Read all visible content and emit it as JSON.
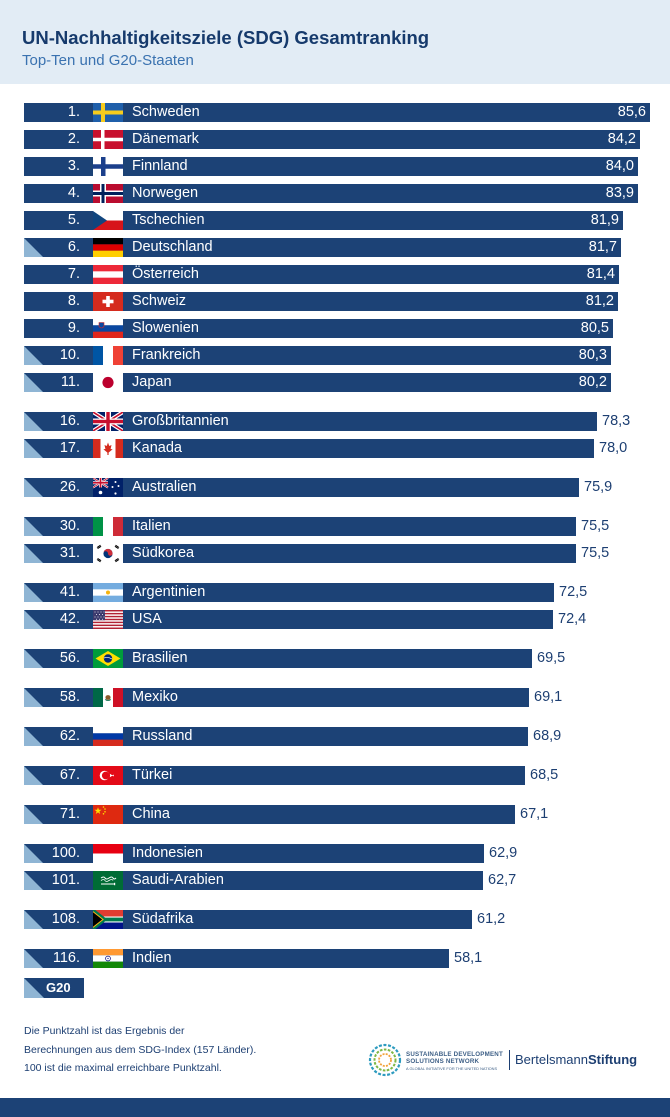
{
  "title": "UN-Nachhaltigkeitsziele (SDG) Gesamtranking",
  "subtitle": "Top-Ten und G20-Staaten",
  "chart_data": {
    "type": "bar",
    "orientation": "horizontal",
    "title": "UN-Nachhaltigkeitsziele (SDG) Gesamtranking",
    "subtitle": "Top-Ten und G20-Staaten",
    "xlabel": "",
    "ylabel": "",
    "xlim": [
      0,
      85.6
    ],
    "grid": false,
    "legend": "bottom-left",
    "rows": [
      {
        "rank": "1.",
        "country": "Schweden",
        "score": 85.6,
        "score_label": "85,6",
        "g20": false,
        "flag": "flag-sweden"
      },
      {
        "rank": "2.",
        "country": "Dänemark",
        "score": 84.2,
        "score_label": "84,2",
        "g20": false,
        "flag": "flag-denmark"
      },
      {
        "rank": "3.",
        "country": "Finnland",
        "score": 84.0,
        "score_label": "84,0",
        "g20": false,
        "flag": "flag-finland"
      },
      {
        "rank": "4.",
        "country": "Norwegen",
        "score": 83.9,
        "score_label": "83,9",
        "g20": false,
        "flag": "flag-norway"
      },
      {
        "rank": "5.",
        "country": "Tschechien",
        "score": 81.9,
        "score_label": "81,9",
        "g20": false,
        "flag": "flag-czechia"
      },
      {
        "rank": "6.",
        "country": "Deutschland",
        "score": 81.7,
        "score_label": "81,7",
        "g20": true,
        "flag": "flag-germany"
      },
      {
        "rank": "7.",
        "country": "Österreich",
        "score": 81.4,
        "score_label": "81,4",
        "g20": false,
        "flag": "flag-austria"
      },
      {
        "rank": "8.",
        "country": "Schweiz",
        "score": 81.2,
        "score_label": "81,2",
        "g20": false,
        "flag": "flag-switzerland"
      },
      {
        "rank": "9.",
        "country": "Slowenien",
        "score": 80.5,
        "score_label": "80,5",
        "g20": false,
        "flag": "flag-slovenia"
      },
      {
        "rank": "10.",
        "country": "Frankreich",
        "score": 80.3,
        "score_label": "80,3",
        "g20": true,
        "flag": "flag-france"
      },
      {
        "rank": "11.",
        "country": "Japan",
        "score": 80.2,
        "score_label": "80,2",
        "g20": true,
        "flag": "flag-japan"
      },
      {
        "rank": "16.",
        "country": "Großbritannien",
        "score": 78.3,
        "score_label": "78,3",
        "g20": true,
        "flag": "flag-uk"
      },
      {
        "rank": "17.",
        "country": "Kanada",
        "score": 78.0,
        "score_label": "78,0",
        "g20": true,
        "flag": "flag-canada"
      },
      {
        "rank": "26.",
        "country": "Australien",
        "score": 75.9,
        "score_label": "75,9",
        "g20": true,
        "flag": "flag-australia"
      },
      {
        "rank": "30.",
        "country": "Italien",
        "score": 75.5,
        "score_label": "75,5",
        "g20": true,
        "flag": "flag-italy"
      },
      {
        "rank": "31.",
        "country": "Südkorea",
        "score": 75.5,
        "score_label": "75,5",
        "g20": true,
        "flag": "flag-south-korea"
      },
      {
        "rank": "41.",
        "country": "Argentinien",
        "score": 72.5,
        "score_label": "72,5",
        "g20": true,
        "flag": "flag-argentina"
      },
      {
        "rank": "42.",
        "country": "USA",
        "score": 72.4,
        "score_label": "72,4",
        "g20": true,
        "flag": "flag-usa"
      },
      {
        "rank": "56.",
        "country": "Brasilien",
        "score": 69.5,
        "score_label": "69,5",
        "g20": true,
        "flag": "flag-brazil"
      },
      {
        "rank": "58.",
        "country": "Mexiko",
        "score": 69.1,
        "score_label": "69,1",
        "g20": true,
        "flag": "flag-mexico"
      },
      {
        "rank": "62.",
        "country": "Russland",
        "score": 68.9,
        "score_label": "68,9",
        "g20": true,
        "flag": "flag-russia"
      },
      {
        "rank": "67.",
        "country": "Türkei",
        "score": 68.5,
        "score_label": "68,5",
        "g20": true,
        "flag": "flag-turkey"
      },
      {
        "rank": "71.",
        "country": "China",
        "score": 67.1,
        "score_label": "67,1",
        "g20": true,
        "flag": "flag-china"
      },
      {
        "rank": "100.",
        "country": "Indonesien",
        "score": 62.9,
        "score_label": "62,9",
        "g20": true,
        "flag": "flag-indonesia"
      },
      {
        "rank": "101.",
        "country": "Saudi-Arabien",
        "score": 62.7,
        "score_label": "62,7",
        "g20": true,
        "flag": "flag-saudi-arabia"
      },
      {
        "rank": "108.",
        "country": "Südafrika",
        "score": 61.2,
        "score_label": "61,2",
        "g20": true,
        "flag": "flag-south-africa"
      },
      {
        "rank": "116.",
        "country": "Indien",
        "score": 58.1,
        "score_label": "58,1",
        "g20": true,
        "flag": "flag-india"
      }
    ],
    "legend_label": "G20"
  },
  "footnote": {
    "line1": "Die Punktzahl ist das Ergebnis der",
    "line2": "Berechnungen aus dem SDG-Index (157 Länder).",
    "line3": "100 ist die maximal erreichbare Punktzahl."
  },
  "sdsn": {
    "line1": "SUSTAINABLE DEVELOPMENT",
    "line2": "SOLUTIONS NETWORK",
    "line3": "A GLOBAL INITIATIVE FOR THE UNITED NATIONS"
  },
  "bertelsmann": {
    "part1": "Bertelsmann",
    "part2": "Stiftung"
  },
  "colors": {
    "bar": "#1c4276",
    "g20_marker": "#8fb5d4",
    "background": "#e2ecf5",
    "text": "#1d3f72"
  }
}
